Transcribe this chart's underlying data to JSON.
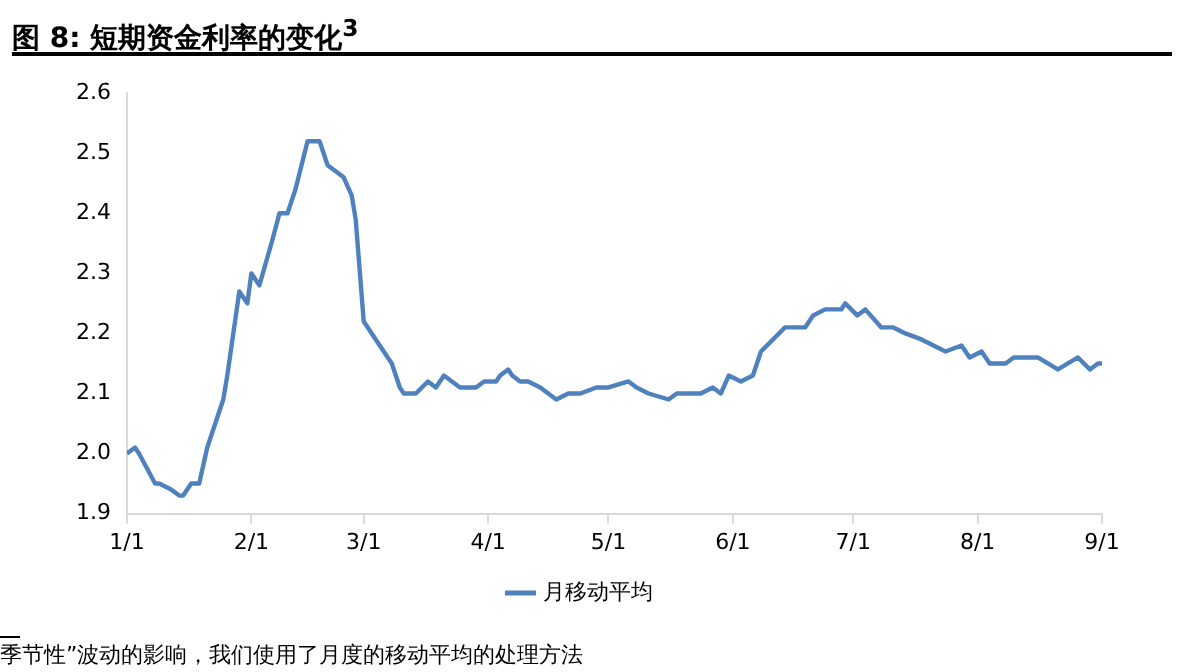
{
  "chart_data": {
    "type": "line",
    "title": "图 8: 短期资金利率的变化$^{3}$",
    "x": [
      "--01-01",
      "--01-03",
      "--01-04",
      "--01-08",
      "--01-09",
      "--01-12",
      "--01-14",
      "--01-15",
      "--01-17",
      "--01-19",
      "--01-21",
      "--01-23",
      "--01-25",
      "--01-26",
      "--01-29",
      "--01-31",
      "--02-01",
      "--02-03",
      "--02-06",
      "--02-08",
      "--02-10",
      "--02-12",
      "--02-15",
      "--02-18",
      "--02-20",
      "--02-22",
      "--02-24",
      "--02-26",
      "--02-27",
      "--03-01",
      "--03-03",
      "--03-06",
      "--03-08",
      "--03-10",
      "--03-11",
      "--03-14",
      "--03-17",
      "--03-19",
      "--03-21",
      "--03-23",
      "--03-25",
      "--03-29",
      "--03-31",
      "--04-03",
      "--04-04",
      "--04-06",
      "--04-07",
      "--04-09",
      "--04-11",
      "--04-14",
      "--04-16",
      "--04-18",
      "--04-21",
      "--04-24",
      "--04-28",
      "--05-01",
      "--05-06",
      "--05-08",
      "--05-11",
      "--05-16",
      "--05-18",
      "--05-24",
      "--05-27",
      "--05-29",
      "--05-31",
      "--06-03",
      "--06-06",
      "--06-08",
      "--06-11",
      "--06-14",
      "--06-19",
      "--06-21",
      "--06-24",
      "--06-28",
      "--06-29",
      "--07-02",
      "--07-04",
      "--07-08",
      "--07-11",
      "--07-14",
      "--07-18",
      "--07-21",
      "--07-24",
      "--07-28",
      "--07-30",
      "--08-02",
      "--08-04",
      "--08-08",
      "--08-10",
      "--08-16",
      "--08-21",
      "--08-26",
      "--08-29",
      "--08-31",
      "--09-01"
    ],
    "series": [
      {
        "name": "月移动平均",
        "color": "#4f81bd",
        "values": [
          2.0,
          2.01,
          2.0,
          1.95,
          1.95,
          1.94,
          1.93,
          1.93,
          1.95,
          1.95,
          2.01,
          2.05,
          2.09,
          2.13,
          2.27,
          2.25,
          2.3,
          2.28,
          2.35,
          2.4,
          2.4,
          2.44,
          2.52,
          2.52,
          2.48,
          2.47,
          2.46,
          2.43,
          2.39,
          2.22,
          2.2,
          2.17,
          2.15,
          2.11,
          2.1,
          2.1,
          2.12,
          2.11,
          2.13,
          2.12,
          2.11,
          2.11,
          2.12,
          2.12,
          2.13,
          2.14,
          2.13,
          2.12,
          2.12,
          2.11,
          2.1,
          2.09,
          2.1,
          2.1,
          2.11,
          2.11,
          2.12,
          2.11,
          2.1,
          2.09,
          2.1,
          2.1,
          2.11,
          2.1,
          2.13,
          2.12,
          2.13,
          2.17,
          2.19,
          2.21,
          2.21,
          2.23,
          2.24,
          2.24,
          2.25,
          2.23,
          2.24,
          2.21,
          2.21,
          2.2,
          2.19,
          2.18,
          2.17,
          2.18,
          2.16,
          2.17,
          2.15,
          2.15,
          2.16,
          2.16,
          2.14,
          2.16,
          2.14,
          2.15,
          2.15
        ]
      }
    ],
    "xlim": [
      "--01-01",
      "--09-01"
    ],
    "xticks": [
      {
        "value": "--01-01",
        "label": "1/1"
      },
      {
        "value": "--02-01",
        "label": "2/1"
      },
      {
        "value": "--03-01",
        "label": "3/1"
      },
      {
        "value": "--04-01",
        "label": "4/1"
      },
      {
        "value": "--05-01",
        "label": "5/1"
      },
      {
        "value": "--06-01",
        "label": "6/1"
      },
      {
        "value": "--07-01",
        "label": "7/1"
      },
      {
        "value": "--08-01",
        "label": "8/1"
      },
      {
        "value": "--09-01",
        "label": "9/1"
      }
    ],
    "ylim": [
      1.9,
      2.6
    ],
    "yticks": [
      1.9,
      {
        "value": 2,
        "label": "2.0"
      },
      2.1,
      2.2,
      2.3,
      2.4,
      2.5,
      2.6
    ],
    "grid": false,
    "legend": "bottom",
    "marker": "none",
    "line_style": "solid",
    "annotations": [
      "季节性”波动的影响，我们使用了月度的移动平均的处理方法"
    ]
  }
}
